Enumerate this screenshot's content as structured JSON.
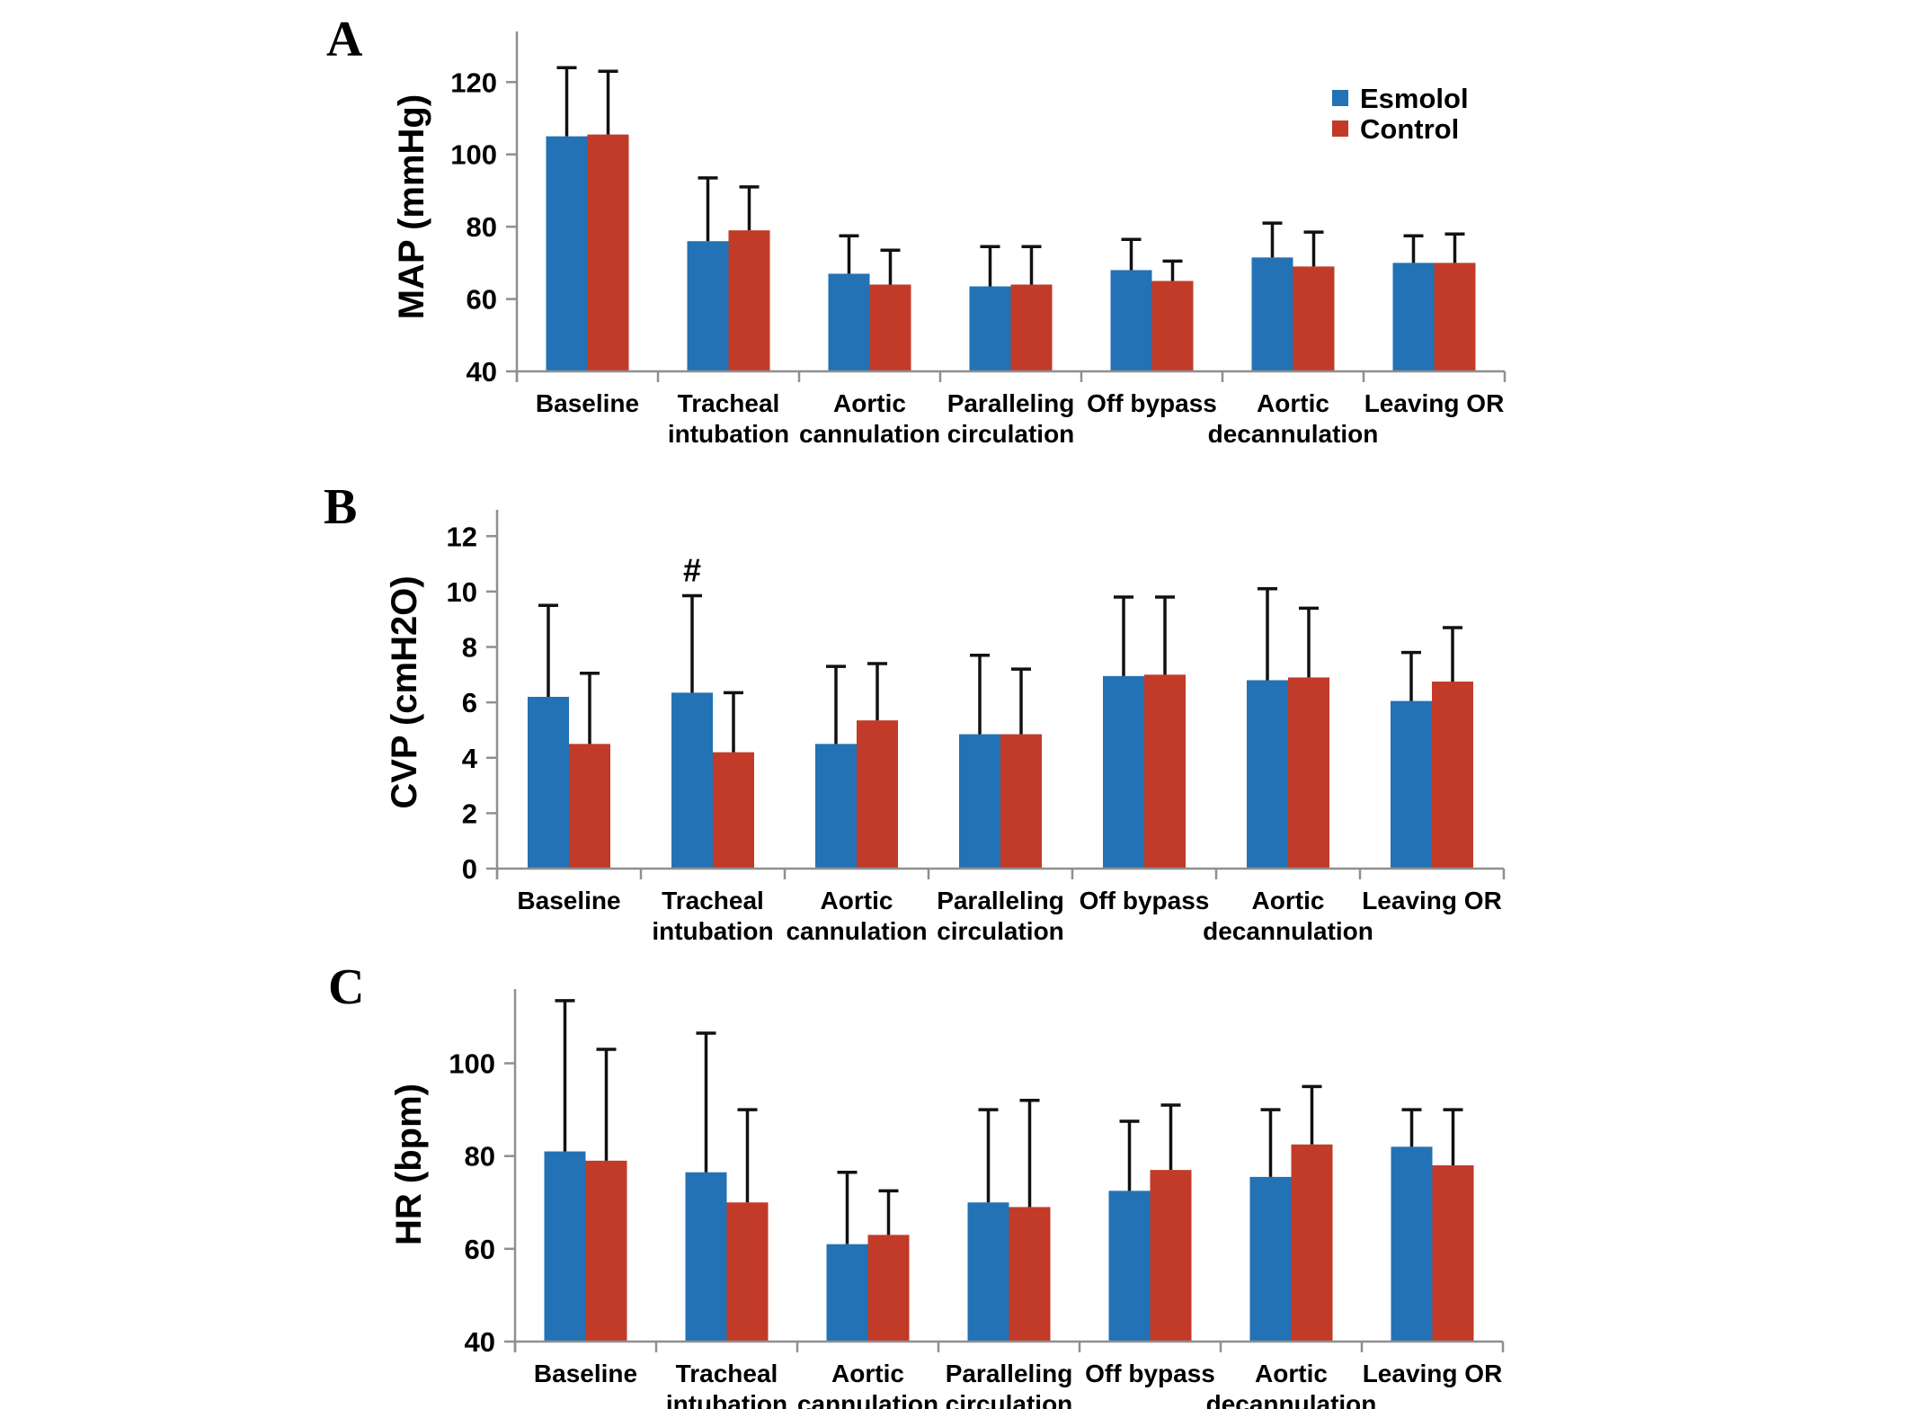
{
  "figure": {
    "background": "#FFFFFF"
  },
  "colors": {
    "esmolol": "#2272B5",
    "control": "#C13B28",
    "axis": "#8F8F8F",
    "error_bar": "#111111",
    "text": "#000000"
  },
  "legend": {
    "entries": [
      {
        "label": "Esmolol",
        "color": "#2272B5"
      },
      {
        "label": "Control",
        "color": "#C13B28"
      }
    ]
  },
  "chart_data": [
    {
      "panel_label": "A",
      "type": "bar",
      "title": "",
      "xlabel": "",
      "ylabel": "MAP (mmHg)",
      "ylim": [
        40,
        134
      ],
      "yticks": [
        40,
        60,
        80,
        100,
        120
      ],
      "grid": false,
      "legend_position": "upper-right",
      "categories": [
        "Baseline",
        "Tracheal intubation",
        "Aortic cannulation",
        "Paralleling circulation",
        "Off bypass",
        "Aortic decannulation",
        "Leaving OR"
      ],
      "category_label_lines": [
        [
          "Baseline"
        ],
        [
          "Tracheal",
          "intubation"
        ],
        [
          "Aortic",
          "cannulation"
        ],
        [
          "Paralleling",
          "circulation"
        ],
        [
          "Off bypass"
        ],
        [
          "Aortic",
          "decannulation"
        ],
        [
          "Leaving OR"
        ]
      ],
      "series": [
        {
          "name": "Esmolol",
          "values": [
            105,
            76,
            67,
            63.5,
            68,
            71.5,
            70
          ],
          "upper_errors": [
            19,
            17.5,
            10.5,
            11,
            8.5,
            9.5,
            7.5
          ]
        },
        {
          "name": "Control",
          "values": [
            105.5,
            79,
            64,
            64,
            65,
            69,
            70
          ],
          "upper_errors": [
            17.5,
            12,
            9.5,
            10.5,
            5.5,
            9.5,
            8
          ]
        }
      ],
      "annotations": []
    },
    {
      "panel_label": "B",
      "type": "bar",
      "title": "",
      "xlabel": "",
      "ylabel": "CVP (cmH2O)",
      "ylim": [
        0,
        12.95
      ],
      "yticks": [
        0,
        2,
        4,
        6,
        8,
        10,
        12
      ],
      "grid": false,
      "legend_position": "none",
      "categories": [
        "Baseline",
        "Tracheal intubation",
        "Aortic cannulation",
        "Paralleling circulation",
        "Off bypass",
        "Aortic decannulation",
        "Leaving OR"
      ],
      "category_label_lines": [
        [
          "Baseline"
        ],
        [
          "Tracheal",
          "intubation"
        ],
        [
          "Aortic",
          "cannulation"
        ],
        [
          "Paralleling",
          "circulation"
        ],
        [
          "Off bypass"
        ],
        [
          "Aortic",
          "decannulation"
        ],
        [
          "Leaving OR"
        ]
      ],
      "series": [
        {
          "name": "Esmolol",
          "values": [
            6.2,
            6.35,
            4.5,
            4.85,
            6.95,
            6.8,
            6.05
          ],
          "upper_errors": [
            3.3,
            3.5,
            2.8,
            2.85,
            2.85,
            3.3,
            1.75
          ]
        },
        {
          "name": "Control",
          "values": [
            4.5,
            4.2,
            5.35,
            4.85,
            7.0,
            6.9,
            6.75
          ],
          "upper_errors": [
            2.55,
            2.15,
            2.05,
            2.35,
            2.8,
            2.5,
            1.95
          ]
        }
      ],
      "annotations": [
        {
          "text": "#",
          "category_index": 1,
          "series_index": 0
        }
      ]
    },
    {
      "panel_label": "C",
      "type": "bar",
      "title": "",
      "xlabel": "",
      "ylabel": "HR (bpm)",
      "ylim": [
        40,
        116
      ],
      "yticks": [
        40,
        60,
        80,
        100
      ],
      "grid": false,
      "legend_position": "none",
      "categories": [
        "Baseline",
        "Tracheal intubation",
        "Aortic cannulation",
        "Paralleling circulation",
        "Off bypass",
        "Aortic decannulation",
        "Leaving OR"
      ],
      "category_label_lines": [
        [
          "Baseline"
        ],
        [
          "Tracheal",
          "intubation"
        ],
        [
          "Aortic",
          "cannulation"
        ],
        [
          "Paralleling",
          "circulation"
        ],
        [
          "Off bypass"
        ],
        [
          "Aortic",
          "decannulation"
        ],
        [
          "Leaving OR"
        ]
      ],
      "series": [
        {
          "name": "Esmolol",
          "values": [
            81,
            76.5,
            61,
            70,
            72.5,
            75.5,
            82
          ],
          "upper_errors": [
            32.5,
            30,
            15.5,
            20,
            15,
            14.5,
            8
          ]
        },
        {
          "name": "Control",
          "values": [
            79,
            70,
            63,
            69,
            77,
            82.5,
            78
          ],
          "upper_errors": [
            24,
            20,
            9.5,
            23,
            14,
            12.5,
            12
          ]
        }
      ],
      "annotations": []
    }
  ]
}
